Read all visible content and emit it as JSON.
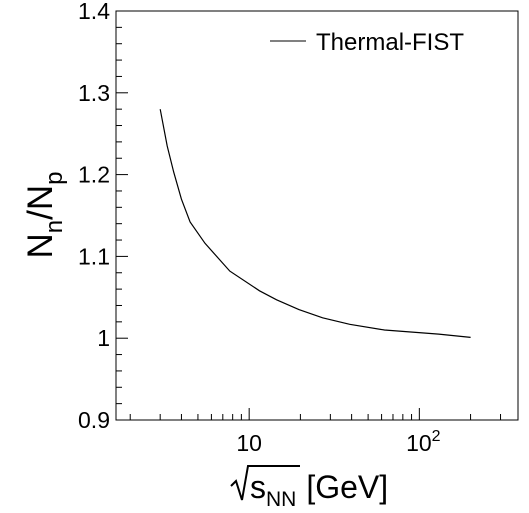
{
  "chart_data": {
    "type": "line",
    "x_scale": "log",
    "xlim": [
      1.65,
      380
    ],
    "ylim": [
      0.9,
      1.4
    ],
    "xlabel": {
      "base": "s",
      "subscript": "NN",
      "unit": "[GeV]"
    },
    "ylabel": {
      "n": "N",
      "n_sub": "n",
      "slash": "/",
      "p": "N",
      "p_sub": "p"
    },
    "y_ticks": [
      {
        "value": 0.9,
        "label": "0.9"
      },
      {
        "value": 1.0,
        "label": "1"
      },
      {
        "value": 1.1,
        "label": "1.1"
      },
      {
        "value": 1.2,
        "label": "1.2"
      },
      {
        "value": 1.3,
        "label": "1.3"
      },
      {
        "value": 1.4,
        "label": "1.4"
      }
    ],
    "x_tick_labels": [
      {
        "value": 10,
        "base": "10",
        "exp": ""
      },
      {
        "value": 100,
        "base": "10",
        "exp": "2"
      }
    ],
    "series": [
      {
        "name": "Thermal-FIST",
        "color": "#000000",
        "x": [
          3.0,
          3.3,
          3.6,
          4.0,
          4.5,
          5.5,
          7.7,
          11.5,
          14.5,
          19.6,
          27,
          39,
          62.4,
          130,
          200
        ],
        "y": [
          1.28,
          1.235,
          1.203,
          1.17,
          1.142,
          1.116,
          1.082,
          1.058,
          1.047,
          1.035,
          1.025,
          1.017,
          1.01,
          1.005,
          1.001
        ]
      }
    ],
    "legend": {
      "position": "top-right",
      "entries": [
        "Thermal-FIST"
      ]
    },
    "grid": false
  }
}
